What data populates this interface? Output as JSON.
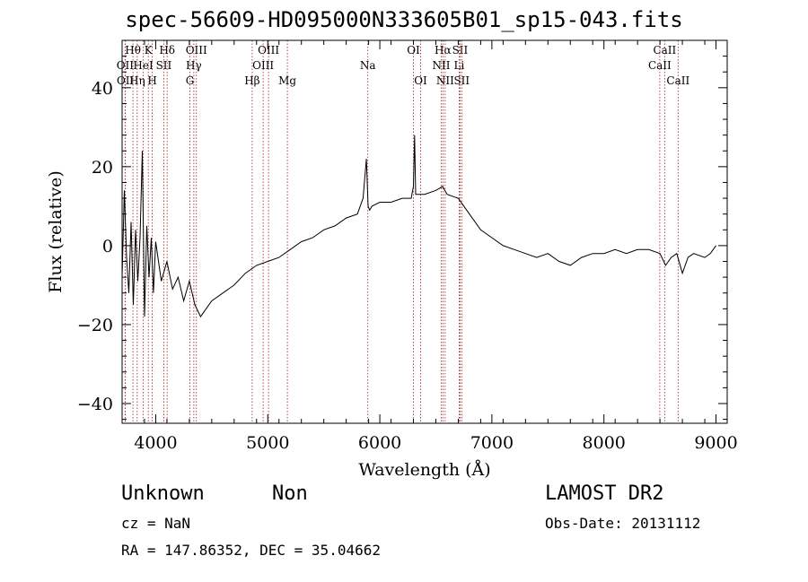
{
  "header": {
    "title": "spec-56609-HD095000N333605B01_sp15-043.fits"
  },
  "info": {
    "class_label": "Unknown",
    "subclass_label": "Non",
    "survey": "LAMOST DR2",
    "cz_text": "cz = NaN",
    "obs_date_text": "Obs-Date: 20131112",
    "coords_text": "RA = 147.86352, DEC =  35.04662"
  },
  "chart_data": {
    "type": "line",
    "title": "spec-56609-HD095000N333605B01_sp15-043.fits",
    "xlabel": "Wavelength (Å)",
    "ylabel": "Flux (relative)",
    "xlim": [
      3700,
      9100
    ],
    "ylim": [
      -45,
      52
    ],
    "x_ticks": [
      4000,
      5000,
      6000,
      7000,
      8000,
      9000
    ],
    "y_ticks": [
      -40,
      -20,
      0,
      20,
      40
    ],
    "grid": false,
    "line_color": "#000000",
    "marker_color": "#b03030",
    "series": [
      {
        "x": [
          3700,
          3720,
          3740,
          3760,
          3780,
          3800,
          3820,
          3840,
          3860,
          3880,
          3900,
          3920,
          3940,
          3960,
          3980,
          4000,
          4050,
          4100,
          4150,
          4200,
          4250,
          4300,
          4350,
          4400,
          4450,
          4500,
          4600,
          4700,
          4800,
          4900,
          5000,
          5100,
          5200,
          5300,
          5400,
          5500,
          5600,
          5700,
          5800,
          5850,
          5880,
          5895,
          5910,
          5930,
          6000,
          6100,
          6200,
          6280,
          6300,
          6310,
          6320,
          6350,
          6400,
          6500,
          6560,
          6600,
          6700,
          6750,
          6800,
          6900,
          7000,
          7100,
          7200,
          7300,
          7400,
          7500,
          7600,
          7700,
          7800,
          7900,
          8000,
          8100,
          8200,
          8300,
          8400,
          8500,
          8550,
          8600,
          8650,
          8700,
          8750,
          8800,
          8900,
          8950,
          9000
        ],
        "y": [
          -8,
          14,
          -3,
          -12,
          6,
          -15,
          4,
          -9,
          2,
          24,
          -18,
          5,
          -8,
          2,
          -12,
          1,
          -9,
          -4,
          -11,
          -8,
          -14,
          -9,
          -15,
          -18,
          -16,
          -14,
          -12,
          -10,
          -7,
          -5,
          -4,
          -3,
          -1,
          1,
          2,
          4,
          5,
          7,
          8,
          12,
          22,
          10,
          9,
          10,
          11,
          11,
          12,
          12,
          15,
          28,
          13,
          13,
          13,
          14,
          15,
          13,
          12,
          10,
          8,
          4,
          2,
          0,
          -1,
          -2,
          -3,
          -2,
          -4,
          -5,
          -3,
          -2,
          -2,
          -1,
          -2,
          -1,
          -1,
          -2,
          -5,
          -3,
          -2,
          -7,
          -3,
          -2,
          -3,
          -2,
          0
        ]
      }
    ],
    "line_markers": [
      {
        "label": "Hθ",
        "x": 3797,
        "row": 1
      },
      {
        "label": "OII",
        "x": 3727,
        "row": 2
      },
      {
        "label": "OII",
        "x": 3729,
        "row": 3
      },
      {
        "label": "K",
        "x": 3934,
        "row": 1
      },
      {
        "label": "H",
        "x": 3969,
        "row": 3
      },
      {
        "label": "HeI",
        "x": 3889,
        "row": 2
      },
      {
        "label": "Hη",
        "x": 3835,
        "row": 3
      },
      {
        "label": "Hδ",
        "x": 4102,
        "row": 1
      },
      {
        "label": "SII",
        "x": 4072,
        "row": 2
      },
      {
        "label": "OIII",
        "x": 4363,
        "row": 1
      },
      {
        "label": "Hγ",
        "x": 4340,
        "row": 2
      },
      {
        "label": "G",
        "x": 4305,
        "row": 3
      },
      {
        "label": "OIII",
        "x": 5007,
        "row": 1
      },
      {
        "label": "OIII",
        "x": 4959,
        "row": 2
      },
      {
        "label": "Hβ",
        "x": 4861,
        "row": 3
      },
      {
        "label": "Mg",
        "x": 5175,
        "row": 3
      },
      {
        "label": "Na",
        "x": 5893,
        "row": 2
      },
      {
        "label": "OI",
        "x": 6300,
        "row": 1
      },
      {
        "label": "OI",
        "x": 6364,
        "row": 3
      },
      {
        "label": "Hα",
        "x": 6563,
        "row": 1
      },
      {
        "label": "NII",
        "x": 6548,
        "row": 2
      },
      {
        "label": "NII",
        "x": 6583,
        "row": 3
      },
      {
        "label": "SII",
        "x": 6716,
        "row": 1
      },
      {
        "label": "Li",
        "x": 6708,
        "row": 2
      },
      {
        "label": "SII",
        "x": 6731,
        "row": 3
      },
      {
        "label": "CaII",
        "x": 8542,
        "row": 1
      },
      {
        "label": "CaII",
        "x": 8498,
        "row": 2
      },
      {
        "label": "CaII",
        "x": 8662,
        "row": 3
      }
    ]
  }
}
